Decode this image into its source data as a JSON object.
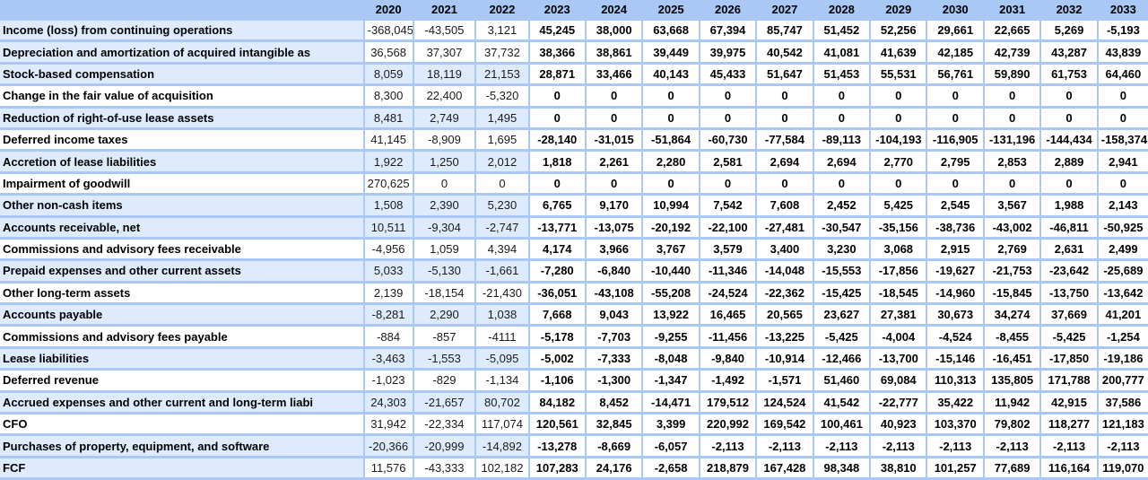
{
  "table": {
    "columns": [
      "2020",
      "2021",
      "2022",
      "2023",
      "2024",
      "2025",
      "2026",
      "2027",
      "2028",
      "2029",
      "2030",
      "2031",
      "2032",
      "2033"
    ],
    "historical_columns": [
      "2020",
      "2021",
      "2022"
    ],
    "forecast_columns": [
      "2023",
      "2024",
      "2025",
      "2026",
      "2027",
      "2028",
      "2029",
      "2030",
      "2031",
      "2032",
      "2033"
    ],
    "rows": [
      {
        "label": "Income (loss) from continuing operations",
        "values": [
          "-368,045",
          "-43,505",
          "3,121",
          "45,245",
          "38,000",
          "63,668",
          "67,394",
          "85,747",
          "51,452",
          "52,256",
          "29,661",
          "22,665",
          "5,269",
          "-5,193"
        ]
      },
      {
        "label": "Depreciation and amortization of acquired intangible as",
        "values": [
          "36,568",
          "37,307",
          "37,732",
          "38,366",
          "38,861",
          "39,449",
          "39,975",
          "40,542",
          "41,081",
          "41,639",
          "42,185",
          "42,739",
          "43,287",
          "43,839"
        ]
      },
      {
        "label": "Stock-based compensation",
        "values": [
          "8,059",
          "18,119",
          "21,153",
          "28,871",
          "33,466",
          "40,143",
          "45,433",
          "51,647",
          "51,453",
          "55,531",
          "56,761",
          "59,890",
          "61,753",
          "64,460"
        ]
      },
      {
        "label": "Change in the fair value of acquisition",
        "values": [
          "8,300",
          "22,400",
          "-5,320",
          "0",
          "0",
          "0",
          "0",
          "0",
          "0",
          "0",
          "0",
          "0",
          "0",
          "0"
        ]
      },
      {
        "label": "Reduction of right-of-use lease assets",
        "values": [
          "8,481",
          "2,749",
          "1,495",
          "0",
          "0",
          "0",
          "0",
          "0",
          "0",
          "0",
          "0",
          "0",
          "0",
          "0"
        ]
      },
      {
        "label": "Deferred income taxes",
        "values": [
          "41,145",
          "-8,909",
          "1,695",
          "-28,140",
          "-31,015",
          "-51,864",
          "-60,730",
          "-77,584",
          "-89,113",
          "-104,193",
          "-116,905",
          "-131,196",
          "-144,434",
          "-158,374"
        ]
      },
      {
        "label": "Accretion of lease liabilities",
        "values": [
          "1,922",
          "1,250",
          "2,012",
          "1,818",
          "2,261",
          "2,280",
          "2,581",
          "2,694",
          "2,694",
          "2,770",
          "2,795",
          "2,853",
          "2,889",
          "2,941"
        ]
      },
      {
        "label": "Impairment of goodwill",
        "values": [
          "270,625",
          "0",
          "0",
          "0",
          "0",
          "0",
          "0",
          "0",
          "0",
          "0",
          "0",
          "0",
          "0",
          "0"
        ]
      },
      {
        "label": "Other non-cash items",
        "values": [
          "1,508",
          "2,390",
          "5,230",
          "6,765",
          "9,170",
          "10,994",
          "7,542",
          "7,608",
          "2,452",
          "5,425",
          "2,545",
          "3,567",
          "1,988",
          "2,143"
        ]
      },
      {
        "label": "Accounts receivable, net",
        "values": [
          "10,511",
          "-9,304",
          "-2,747",
          "-13,771",
          "-13,075",
          "-20,192",
          "-22,100",
          "-27,481",
          "-30,547",
          "-35,156",
          "-38,736",
          "-43,002",
          "-46,811",
          "-50,925"
        ]
      },
      {
        "label": "Commissions and advisory fees receivable",
        "values": [
          "-4,956",
          "1,059",
          "4,394",
          "4,174",
          "3,966",
          "3,767",
          "3,579",
          "3,400",
          "3,230",
          "3,068",
          "2,915",
          "2,769",
          "2,631",
          "2,499"
        ]
      },
      {
        "label": "Prepaid expenses and other current assets",
        "values": [
          "5,033",
          "-5,130",
          "-1,661",
          "-7,280",
          "-6,840",
          "-10,440",
          "-11,346",
          "-14,048",
          "-15,553",
          "-17,856",
          "-19,627",
          "-21,753",
          "-23,642",
          "-25,689"
        ]
      },
      {
        "label": "Other long-term assets",
        "values": [
          "2,139",
          "-18,154",
          "-21,430",
          "-36,051",
          "-43,108",
          "-55,208",
          "-24,524",
          "-22,362",
          "-15,425",
          "-18,545",
          "-14,960",
          "-15,845",
          "-13,750",
          "-13,642"
        ]
      },
      {
        "label": "Accounts payable",
        "values": [
          "-8,281",
          "2,290",
          "1,038",
          "7,668",
          "9,043",
          "13,922",
          "16,465",
          "20,565",
          "23,627",
          "27,381",
          "30,673",
          "34,274",
          "37,669",
          "41,201"
        ]
      },
      {
        "label": "Commissions and advisory fees payable",
        "values": [
          "-884",
          "-857",
          "-4111",
          "-5,178",
          "-7,703",
          "-9,255",
          "-11,456",
          "-13,225",
          "-5,425",
          "-4,004",
          "-4,524",
          "-8,455",
          "-5,425",
          "-1,254"
        ]
      },
      {
        "label": "Lease liabilities",
        "values": [
          "-3,463",
          "-1,553",
          "-5,095",
          "-5,002",
          "-7,333",
          "-8,048",
          "-9,840",
          "-10,914",
          "-12,466",
          "-13,700",
          "-15,146",
          "-16,451",
          "-17,850",
          "-19,186"
        ]
      },
      {
        "label": "Deferred revenue",
        "values": [
          "-1,023",
          "-829",
          "-1,134",
          "-1,106",
          "-1,300",
          "-1,347",
          "-1,492",
          "-1,571",
          "51,460",
          "69,084",
          "110,313",
          "135,805",
          "171,788",
          "200,777"
        ]
      },
      {
        "label": "Accrued expenses and other current and long-term liabi",
        "values": [
          "24,303",
          "-21,657",
          "80,702",
          "84,182",
          "8,452",
          "-14,471",
          "179,512",
          "124,524",
          "41,542",
          "-22,777",
          "35,422",
          "11,942",
          "42,915",
          "37,586"
        ]
      },
      {
        "label": "CFO",
        "values": [
          "31,942",
          "-22,334",
          "117,074",
          "120,561",
          "32,845",
          "3,399",
          "220,992",
          "169,542",
          "100,461",
          "40,923",
          "103,370",
          "79,802",
          "118,277",
          "121,183"
        ]
      },
      {
        "label": "Purchases of property, equipment, and software",
        "values": [
          "-20,366",
          "-20,999",
          "-14,892",
          "-13,278",
          "-8,669",
          "-6,057",
          "-2,113",
          "-2,113",
          "-2,113",
          "-2,113",
          "-2,113",
          "-2,113",
          "-2,113",
          "-2,113"
        ]
      },
      {
        "label": "FCF",
        "values": [
          "11,576",
          "-43,333",
          "102,182",
          "107,283",
          "24,176",
          "-2,658",
          "218,879",
          "167,428",
          "98,348",
          "38,810",
          "101,257",
          "77,689",
          "116,164",
          "119,070"
        ]
      }
    ]
  },
  "colors": {
    "header_bg": "#a9c8f5",
    "grid": "#a9c8f5",
    "band_blue": "#ddebfd",
    "band_white": "#ffffff"
  }
}
